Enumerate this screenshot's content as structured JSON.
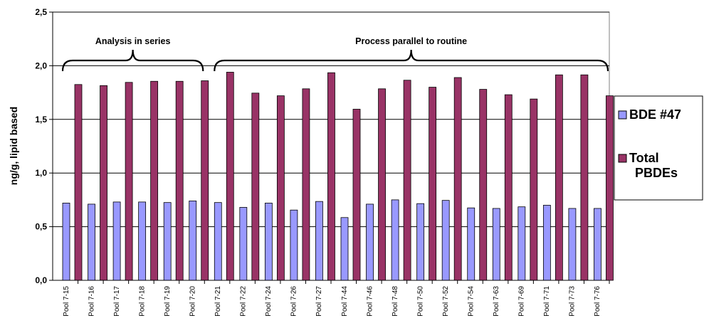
{
  "chart_data": {
    "type": "bar",
    "ylabel": "ng/g, lipid based",
    "ylim": [
      0,
      2.5
    ],
    "y_ticks": [
      "0,0",
      "0,5",
      "1,0",
      "1,5",
      "2,0",
      "2,5"
    ],
    "grid": true,
    "legend_position": "right",
    "categories": [
      "Pool 7-15",
      "Pool 7-16",
      "Pool 7-17",
      "Pool 7-18",
      "Pool 7-19",
      "Pool 7-20",
      "Pool 7-21",
      "Pool 7-22",
      "Pool 7-24",
      "Pool 7-26",
      "Pool 7-27",
      "Pool 7-44",
      "Pool 7-46",
      "Pool 7-48",
      "Pool 7-50",
      "Pool 7-52",
      "Pool 7-54",
      "Pool 7-63",
      "Pool 7-69",
      "Pool 7-71",
      "Pool 7-73",
      "Pool 7-76"
    ],
    "series": [
      {
        "name": "BDE #47",
        "color": "#9999ff",
        "values": [
          0.72,
          0.71,
          0.73,
          0.73,
          0.725,
          0.74,
          0.725,
          0.68,
          0.72,
          0.655,
          0.735,
          0.585,
          0.71,
          0.75,
          0.715,
          0.745,
          0.675,
          0.67,
          0.685,
          0.7,
          0.67,
          0.67
        ]
      },
      {
        "name": "Total PBDEs",
        "color": "#993366",
        "values": [
          1.825,
          1.815,
          1.845,
          1.855,
          1.855,
          1.86,
          1.94,
          1.745,
          1.72,
          1.785,
          1.935,
          1.595,
          1.785,
          1.865,
          1.8,
          1.89,
          1.78,
          1.73,
          1.69,
          1.915,
          1.915,
          1.72
        ]
      }
    ],
    "annotations": [
      {
        "text": "Analysis in series",
        "from": "Pool 7-15",
        "to": "Pool 7-20"
      },
      {
        "text": "Process parallel to routine",
        "from": "Pool 7-21",
        "to": "Pool 7-76"
      }
    ]
  },
  "legend": {
    "items": [
      {
        "lines": [
          "BDE #47"
        ],
        "color": "#9999ff"
      },
      {
        "lines": [
          "Total",
          "PBDEs"
        ],
        "color": "#993366"
      }
    ]
  }
}
